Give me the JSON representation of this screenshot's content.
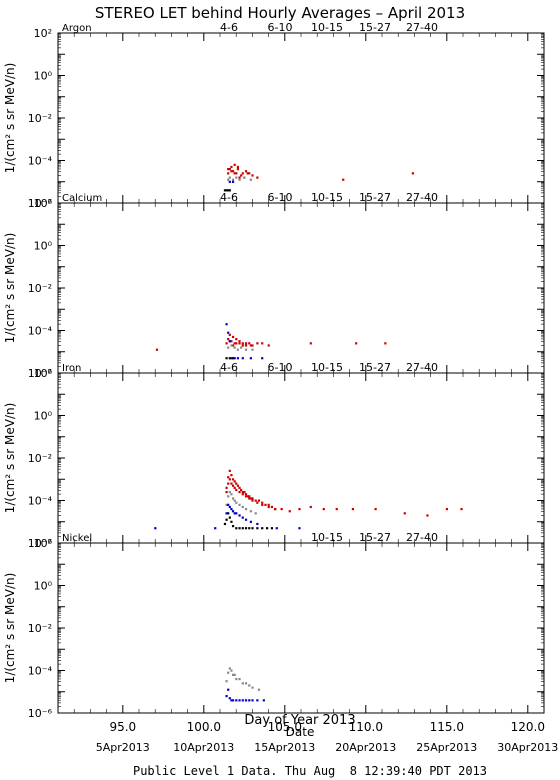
{
  "title": "STEREO LET behind Hourly Averages – April 2013",
  "footer": "Public Level 1 Data. Thu Aug  8 12:39:40 PDT 2013",
  "colors": {
    "4-6": "#cc0000",
    "6-10": "#cc0000",
    "10-15": "#888888",
    "15-27": "#0000cc",
    "27-40": "#000000",
    "axis": "#000000",
    "background": "#ffffff"
  },
  "chart_data": [
    {
      "type": "scatter",
      "panel": "Argon",
      "ylabel": "1/(cm² s sr MeV/n)",
      "xlim": [
        91.0,
        121.0
      ],
      "ylim_log10": [
        -6,
        2
      ],
      "yscale": "log",
      "legend": [
        "4-6",
        "6-10",
        "10-15",
        "15-27",
        "27-40"
      ],
      "legend_placement": "top",
      "grid": false,
      "series": [
        {
          "name": "4-6",
          "points": [
            [
              101.5,
              -4.6
            ],
            [
              101.6,
              -4.4
            ],
            [
              101.7,
              -4.3
            ],
            [
              101.8,
              -4.5
            ],
            [
              101.9,
              -4.2
            ],
            [
              102.0,
              -4.6
            ],
            [
              102.1,
              -4.4
            ],
            [
              102.3,
              -4.7
            ],
            [
              102.5,
              -4.8
            ],
            [
              102.7,
              -4.6
            ]
          ]
        },
        {
          "name": "6-10",
          "points": [
            [
              101.5,
              -4.4
            ],
            [
              101.7,
              -4.5
            ],
            [
              101.9,
              -4.6
            ],
            [
              102.1,
              -4.3
            ],
            [
              102.2,
              -4.8
            ],
            [
              102.4,
              -4.6
            ],
            [
              102.6,
              -4.5
            ],
            [
              102.8,
              -4.6
            ],
            [
              103.0,
              -4.7
            ],
            [
              103.3,
              -4.8
            ],
            [
              108.6,
              -4.9
            ],
            [
              112.9,
              -4.6
            ]
          ]
        },
        {
          "name": "10-15",
          "points": [
            [
              101.5,
              -4.9
            ],
            [
              101.6,
              -4.8
            ],
            [
              101.8,
              -4.9
            ],
            [
              102.0,
              -4.8
            ],
            [
              102.2,
              -4.9
            ],
            [
              102.5,
              -4.8
            ],
            [
              102.9,
              -4.9
            ]
          ]
        },
        {
          "name": "15-27",
          "points": [
            [
              101.6,
              -5.0
            ],
            [
              101.8,
              -5.0
            ]
          ]
        },
        {
          "name": "27-40",
          "points": [
            [
              101.3,
              -5.4
            ],
            [
              101.4,
              -5.4
            ],
            [
              101.5,
              -5.4
            ],
            [
              101.6,
              -5.4
            ]
          ]
        }
      ]
    },
    {
      "type": "scatter",
      "panel": "Calcium",
      "ylabel": "1/(cm² s sr MeV/n)",
      "xlim": [
        91.0,
        121.0
      ],
      "ylim_log10": [
        -6,
        2
      ],
      "yscale": "log",
      "legend": [
        "4-6",
        "6-10",
        "10-15",
        "15-27",
        "27-40"
      ],
      "legend_placement": "top",
      "grid": false,
      "series": [
        {
          "name": "4-6",
          "points": [
            [
              97.1,
              -4.9
            ],
            [
              101.5,
              -4.4
            ],
            [
              101.6,
              -4.2
            ],
            [
              101.7,
              -4.5
            ],
            [
              101.8,
              -4.3
            ],
            [
              101.9,
              -4.6
            ],
            [
              102.0,
              -4.4
            ],
            [
              102.2,
              -4.6
            ],
            [
              102.4,
              -4.7
            ],
            [
              102.6,
              -4.6
            ],
            [
              102.9,
              -4.7
            ]
          ]
        },
        {
          "name": "6-10",
          "points": [
            [
              101.4,
              -4.6
            ],
            [
              101.6,
              -4.5
            ],
            [
              101.8,
              -4.7
            ],
            [
              102.0,
              -4.6
            ],
            [
              102.2,
              -4.5
            ],
            [
              102.4,
              -4.6
            ],
            [
              102.6,
              -4.7
            ],
            [
              102.8,
              -4.6
            ],
            [
              103.0,
              -4.7
            ],
            [
              103.3,
              -4.6
            ],
            [
              103.6,
              -4.6
            ],
            [
              104.0,
              -4.7
            ],
            [
              106.6,
              -4.6
            ],
            [
              109.4,
              -4.6
            ],
            [
              111.2,
              -4.6
            ]
          ]
        },
        {
          "name": "10-15",
          "points": [
            [
              101.5,
              -4.8
            ],
            [
              101.7,
              -4.7
            ],
            [
              101.9,
              -4.8
            ],
            [
              102.1,
              -4.9
            ],
            [
              102.3,
              -4.8
            ],
            [
              102.6,
              -4.9
            ],
            [
              103.0,
              -4.9
            ]
          ]
        },
        {
          "name": "15-27",
          "points": [
            [
              101.4,
              -3.7
            ],
            [
              101.5,
              -4.1
            ],
            [
              101.6,
              -4.5
            ],
            [
              101.7,
              -5.3
            ],
            [
              101.9,
              -5.3
            ],
            [
              102.1,
              -5.3
            ],
            [
              102.4,
              -5.3
            ],
            [
              102.9,
              -5.3
            ],
            [
              103.6,
              -5.3
            ]
          ]
        },
        {
          "name": "27-40",
          "points": [
            [
              101.4,
              -5.3
            ],
            [
              101.6,
              -5.3
            ],
            [
              101.8,
              -5.3
            ]
          ]
        }
      ]
    },
    {
      "type": "scatter",
      "panel": "Iron",
      "ylabel": "1/(cm² s sr MeV/n)",
      "xlim": [
        91.0,
        121.0
      ],
      "ylim_log10": [
        -6,
        2
      ],
      "yscale": "log",
      "legend": [
        "4-6",
        "6-10",
        "10-15",
        "15-27",
        "27-40"
      ],
      "legend_placement": "top",
      "grid": false,
      "series": [
        {
          "name": "4-6",
          "points": [
            [
              101.4,
              -3.4
            ],
            [
              101.5,
              -2.9
            ],
            [
              101.6,
              -2.6
            ],
            [
              101.7,
              -2.8
            ],
            [
              101.8,
              -3.0
            ],
            [
              101.9,
              -3.1
            ],
            [
              102.0,
              -3.2
            ],
            [
              102.1,
              -3.3
            ],
            [
              102.2,
              -3.4
            ],
            [
              102.3,
              -3.5
            ],
            [
              102.4,
              -3.6
            ],
            [
              102.5,
              -3.6
            ],
            [
              102.6,
              -3.7
            ],
            [
              102.7,
              -3.8
            ],
            [
              102.8,
              -3.8
            ],
            [
              102.9,
              -3.9
            ],
            [
              103.0,
              -3.9
            ],
            [
              103.2,
              -4.0
            ],
            [
              103.4,
              -4.0
            ],
            [
              103.6,
              -4.1
            ],
            [
              103.8,
              -4.2
            ],
            [
              104.0,
              -4.2
            ],
            [
              104.2,
              -4.3
            ],
            [
              104.4,
              -4.4
            ]
          ]
        },
        {
          "name": "6-10",
          "points": [
            [
              101.4,
              -3.6
            ],
            [
              101.5,
              -3.2
            ],
            [
              101.6,
              -3.0
            ],
            [
              101.7,
              -3.2
            ],
            [
              101.8,
              -3.3
            ],
            [
              101.9,
              -3.4
            ],
            [
              102.0,
              -3.5
            ],
            [
              102.2,
              -3.6
            ],
            [
              102.4,
              -3.7
            ],
            [
              102.6,
              -3.8
            ],
            [
              102.8,
              -3.9
            ],
            [
              103.0,
              -4.0
            ],
            [
              103.3,
              -4.1
            ],
            [
              103.6,
              -4.2
            ],
            [
              104.0,
              -4.3
            ],
            [
              104.4,
              -4.4
            ],
            [
              104.8,
              -4.4
            ],
            [
              105.3,
              -4.5
            ],
            [
              105.9,
              -4.4
            ],
            [
              106.6,
              -4.3
            ],
            [
              107.4,
              -4.4
            ],
            [
              108.2,
              -4.4
            ],
            [
              109.2,
              -4.4
            ],
            [
              110.6,
              -4.4
            ],
            [
              112.4,
              -4.6
            ],
            [
              113.8,
              -4.7
            ],
            [
              115.0,
              -4.4
            ],
            [
              115.9,
              -4.4
            ]
          ]
        },
        {
          "name": "10-15",
          "points": [
            [
              101.4,
              -4.2
            ],
            [
              101.5,
              -3.8
            ],
            [
              101.6,
              -3.6
            ],
            [
              101.7,
              -3.7
            ],
            [
              101.8,
              -3.9
            ],
            [
              101.9,
              -4.0
            ],
            [
              102.0,
              -4.1
            ],
            [
              102.2,
              -4.2
            ],
            [
              102.4,
              -4.3
            ],
            [
              102.6,
              -4.4
            ],
            [
              102.9,
              -4.5
            ],
            [
              103.2,
              -4.6
            ]
          ]
        },
        {
          "name": "15-27",
          "points": [
            [
              97.0,
              -5.3
            ],
            [
              100.7,
              -5.3
            ],
            [
              101.4,
              -4.6
            ],
            [
              101.5,
              -4.2
            ],
            [
              101.6,
              -4.3
            ],
            [
              101.7,
              -4.4
            ],
            [
              101.8,
              -4.5
            ],
            [
              101.9,
              -4.6
            ],
            [
              102.0,
              -4.6
            ],
            [
              102.2,
              -4.7
            ],
            [
              102.4,
              -4.8
            ],
            [
              102.6,
              -4.9
            ],
            [
              102.9,
              -5.0
            ],
            [
              103.3,
              -5.1
            ],
            [
              104.5,
              -5.3
            ],
            [
              105.9,
              -5.3
            ]
          ]
        },
        {
          "name": "27-40",
          "points": [
            [
              101.3,
              -5.1
            ],
            [
              101.4,
              -4.9
            ],
            [
              101.5,
              -4.6
            ],
            [
              101.6,
              -4.8
            ],
            [
              101.7,
              -5.0
            ],
            [
              101.8,
              -5.2
            ],
            [
              102.0,
              -5.3
            ],
            [
              102.2,
              -5.3
            ],
            [
              102.4,
              -5.3
            ],
            [
              102.6,
              -5.3
            ],
            [
              102.8,
              -5.3
            ],
            [
              103.0,
              -5.3
            ],
            [
              103.3,
              -5.3
            ],
            [
              103.6,
              -5.3
            ],
            [
              103.9,
              -5.3
            ],
            [
              104.2,
              -5.3
            ]
          ]
        }
      ]
    },
    {
      "type": "scatter",
      "panel": "Nickel",
      "ylabel": "1/(cm² s sr MeV/n)",
      "xlim": [
        91.0,
        121.0
      ],
      "ylim_log10": [
        -6,
        2
      ],
      "yscale": "log",
      "legend": [
        "10-15",
        "15-27",
        "27-40"
      ],
      "legend_placement": "top",
      "grid": false,
      "series": [
        {
          "name": "10-15",
          "points": [
            [
              101.4,
              -4.5
            ],
            [
              101.5,
              -4.1
            ],
            [
              101.6,
              -3.9
            ],
            [
              101.7,
              -4.0
            ],
            [
              101.8,
              -4.2
            ],
            [
              101.9,
              -4.2
            ],
            [
              102.0,
              -4.4
            ],
            [
              102.2,
              -4.4
            ],
            [
              102.4,
              -4.6
            ],
            [
              102.6,
              -4.6
            ],
            [
              102.8,
              -4.7
            ],
            [
              103.0,
              -4.8
            ],
            [
              103.4,
              -4.9
            ]
          ]
        },
        {
          "name": "15-27",
          "points": [
            [
              101.4,
              -5.2
            ],
            [
              101.5,
              -4.9
            ],
            [
              101.6,
              -5.3
            ],
            [
              101.7,
              -5.4
            ],
            [
              101.8,
              -5.4
            ],
            [
              102.0,
              -5.4
            ],
            [
              102.2,
              -5.4
            ],
            [
              102.4,
              -5.4
            ],
            [
              102.6,
              -5.4
            ],
            [
              102.8,
              -5.4
            ],
            [
              103.0,
              -5.4
            ],
            [
              103.3,
              -5.4
            ],
            [
              103.7,
              -5.4
            ]
          ]
        },
        {
          "name": "27-40",
          "points": []
        }
      ]
    }
  ],
  "xaxis": {
    "label": "Day of Year 2013",
    "ticks": [
      "95.0",
      "100.0",
      "105.0",
      "110.0",
      "115.0",
      "120.0"
    ],
    "tick_values": [
      95.0,
      100.0,
      105.0,
      110.0,
      115.0,
      120.0
    ],
    "sub_label": "Date",
    "date_ticks": [
      "5Apr2013",
      "10Apr2013",
      "15Apr2013",
      "20Apr2013",
      "25Apr2013",
      "30Apr2013"
    ],
    "date_tick_values": [
      95.0,
      100.0,
      105.0,
      110.0,
      115.0,
      120.0
    ]
  },
  "yticks": [
    "10⁻⁶",
    "10⁻⁴",
    "10⁻²",
    "10⁰",
    "10²"
  ]
}
